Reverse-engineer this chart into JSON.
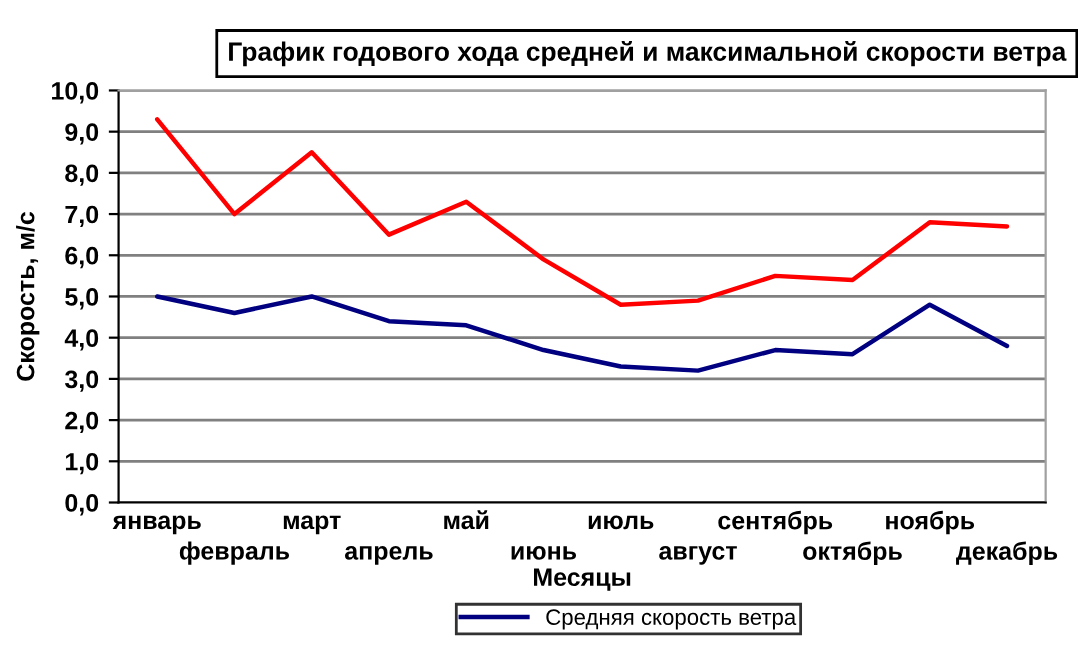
{
  "chart_data": {
    "type": "line",
    "title": "График годового хода средней и максимальной скорости ветра",
    "xlabel": "Месяцы",
    "ylabel": "Скорость, м/с",
    "categories": [
      "январь",
      "февраль",
      "март",
      "апрель",
      "май",
      "июнь",
      "июль",
      "август",
      "сентябрь",
      "октябрь",
      "ноябрь",
      "декабрь"
    ],
    "series": [
      {
        "color": "#ff0000",
        "values": [
          9.3,
          7.0,
          8.5,
          6.5,
          7.3,
          5.9,
          4.8,
          4.9,
          5.5,
          5.4,
          6.8,
          6.7
        ]
      },
      {
        "name": "Средняя скорость ветра",
        "color": "#000080",
        "values": [
          5.0,
          4.6,
          5.0,
          4.4,
          4.3,
          3.7,
          3.3,
          3.2,
          3.7,
          3.6,
          4.8,
          3.8
        ]
      }
    ],
    "ylim": [
      0,
      10
    ],
    "yticks": [
      {
        "value": 0,
        "label": "0,0"
      },
      {
        "value": 1,
        "label": "1,0"
      },
      {
        "value": 2,
        "label": "2,0"
      },
      {
        "value": 3,
        "label": "3,0"
      },
      {
        "value": 4,
        "label": "4,0"
      },
      {
        "value": 5,
        "label": "5,0"
      },
      {
        "value": 6,
        "label": "6,0"
      },
      {
        "value": 7,
        "label": "7,0"
      },
      {
        "value": 8,
        "label": "8,0"
      },
      {
        "value": 9,
        "label": "9,0"
      },
      {
        "value": 10,
        "label": "10,0"
      }
    ],
    "grid": "y",
    "legend": "bottom",
    "marker": "none",
    "line_style": "solid"
  }
}
